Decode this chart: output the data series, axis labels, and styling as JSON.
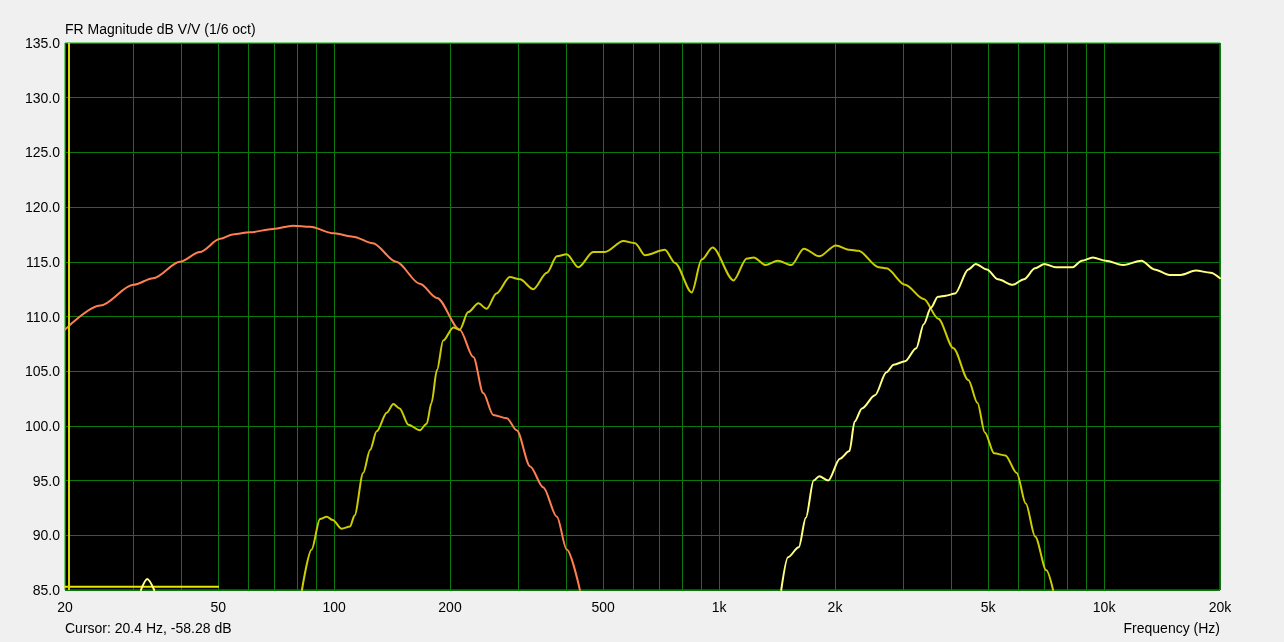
{
  "chart_data": {
    "type": "line",
    "ylabel": "FR Magnitude dB V/V (1/6 oct)",
    "xlabel": "Frequency (Hz)",
    "annotations": [
      "Cursor: 20.4 Hz, -58.28 dB"
    ],
    "log": "x",
    "grid": true,
    "marker": "none",
    "line_style": "solid",
    "xlim": [
      20,
      20000
    ],
    "ylim": [
      85,
      135
    ],
    "xticks": [
      20,
      {
        "value": 30,
        "label": null
      },
      {
        "value": 40,
        "label": null
      },
      50,
      {
        "value": 60,
        "label": null
      },
      {
        "value": 70,
        "label": null
      },
      {
        "value": 80,
        "label": null
      },
      {
        "value": 90,
        "label": null
      },
      100,
      200,
      {
        "value": 300,
        "label": null
      },
      {
        "value": 400,
        "label": null
      },
      500,
      {
        "value": 600,
        "label": null
      },
      {
        "value": 700,
        "label": null
      },
      {
        "value": 800,
        "label": null
      },
      {
        "value": 900,
        "label": null
      },
      {
        "value": 1000,
        "label": "1k"
      },
      {
        "value": 2000,
        "label": "2k"
      },
      {
        "value": 3000,
        "label": null
      },
      {
        "value": 4000,
        "label": null
      },
      {
        "value": 5000,
        "label": "5k"
      },
      {
        "value": 6000,
        "label": null
      },
      {
        "value": 7000,
        "label": null
      },
      {
        "value": 8000,
        "label": null
      },
      {
        "value": 9000,
        "label": null
      },
      {
        "value": 10000,
        "label": "10k"
      },
      {
        "value": 20000,
        "label": "20k"
      }
    ],
    "yticks": [
      {
        "value": 85,
        "label": "85.0"
      },
      {
        "value": 90,
        "label": "90.0"
      },
      {
        "value": 95,
        "label": "95.0"
      },
      {
        "value": 100,
        "label": "100.0"
      },
      {
        "value": 105,
        "label": "105.0"
      },
      {
        "value": 110,
        "label": "110.0"
      },
      {
        "value": 115,
        "label": "115.0"
      },
      {
        "value": 120,
        "label": "120.0"
      },
      {
        "value": 125,
        "label": "125.0"
      },
      {
        "value": 130,
        "label": "130.0"
      },
      {
        "value": 135,
        "label": "135.0"
      }
    ],
    "ref_lines": [
      {
        "axis": "x",
        "value": 20.4,
        "label": null,
        "color": "#d8d800"
      }
    ],
    "series": [
      {
        "color": "#e6e600",
        "x": [
          20,
          50
        ],
        "values": [
          85.3,
          85.3
        ]
      },
      {
        "color": "#ff7f50",
        "x": [
          20,
          24.7,
          30.1,
          33.9,
          39.8,
          44.8,
          50.6,
          54.6,
          60.5,
          69.4,
          78.2,
          86.5,
          100,
          112,
          126,
          145,
          167,
          185,
          212,
          230,
          244,
          259,
          281,
          298,
          323,
          349,
          379,
          402,
          435
        ],
        "values": [
          108.8,
          111.0,
          112.9,
          113.5,
          115.0,
          115.9,
          117.1,
          117.5,
          117.7,
          118.0,
          118.3,
          118.2,
          117.6,
          117.3,
          116.7,
          115.0,
          113.0,
          111.7,
          108.8,
          106.3,
          103.0,
          101.0,
          100.7,
          99.6,
          96.3,
          94.4,
          91.7,
          88.7,
          85.0
        ]
      },
      {
        "color": "#cccc00",
        "x": [
          82.5,
          87.4,
          91.9,
          95.7,
          99.2,
          104.6,
          110,
          113,
          119,
          124,
          129,
          137,
          142.5,
          148,
          156,
          167,
          174,
          179,
          185,
          192,
          204,
          212,
          223,
          237,
          249,
          264,
          286,
          304,
          329,
          357,
          379,
          402,
          431,
          471,
          505,
          564,
          605,
          642,
          723,
          768,
          849,
          901,
          962,
          1090,
          1180,
          1230,
          1320,
          1420,
          1540,
          1660,
          1820,
          2010,
          2180,
          2300,
          2600,
          2720,
          3040,
          3400,
          3710,
          4060,
          4440,
          4690,
          4900,
          5180,
          5540,
          5930,
          6260,
          6620,
          7080,
          7370
        ],
        "values": [
          85.0,
          88.7,
          91.5,
          91.7,
          91.4,
          90.6,
          90.8,
          91.8,
          95.7,
          97.8,
          99.5,
          101.2,
          102.0,
          101.6,
          100.1,
          99.6,
          100.2,
          102.1,
          105.1,
          107.8,
          109.0,
          108.8,
          110.4,
          111.2,
          110.7,
          112.1,
          113.6,
          113.4,
          112.5,
          114.0,
          115.5,
          115.7,
          114.5,
          115.9,
          115.9,
          116.9,
          116.7,
          115.6,
          116.1,
          114.9,
          112.2,
          115.2,
          116.3,
          113.3,
          115.3,
          115.4,
          114.7,
          115.1,
          114.7,
          116.2,
          115.5,
          116.5,
          116.1,
          116.0,
          114.5,
          114.4,
          112.9,
          111.6,
          109.8,
          107.1,
          104.2,
          102.1,
          99.4,
          97.5,
          97.3,
          95.7,
          92.9,
          89.9,
          86.8,
          85.0
        ]
      },
      {
        "color": "#ffff80",
        "x": [
          31.5,
          32.7,
          34.1,
          40,
          1450,
          1510,
          1610,
          1680,
          1760,
          1820,
          1920,
          2060,
          2180,
          2250,
          2350,
          2540,
          2720,
          2840,
          3040,
          3250,
          3400,
          3550,
          3700,
          3880,
          4100,
          4440,
          4640,
          4960,
          5300,
          5790,
          6190,
          6620,
          7000,
          7490,
          8280,
          8750,
          9350,
          10100,
          11200,
          12500,
          13500,
          14800,
          15800,
          17300,
          18900,
          20000
        ],
        "values": [
          85.0,
          86.0,
          85.0,
          null,
          85.0,
          88.0,
          88.9,
          91.6,
          95.0,
          95.4,
          95.0,
          97.0,
          97.7,
          100.4,
          101.6,
          102.8,
          104.9,
          105.6,
          105.9,
          107.1,
          109.3,
          110.8,
          111.8,
          111.9,
          112.1,
          114.3,
          114.8,
          114.3,
          113.4,
          112.9,
          113.4,
          114.4,
          114.8,
          114.5,
          114.5,
          115.1,
          115.4,
          115.1,
          114.7,
          115.1,
          114.3,
          113.8,
          113.8,
          114.2,
          114.0,
          113.5
        ]
      }
    ]
  }
}
